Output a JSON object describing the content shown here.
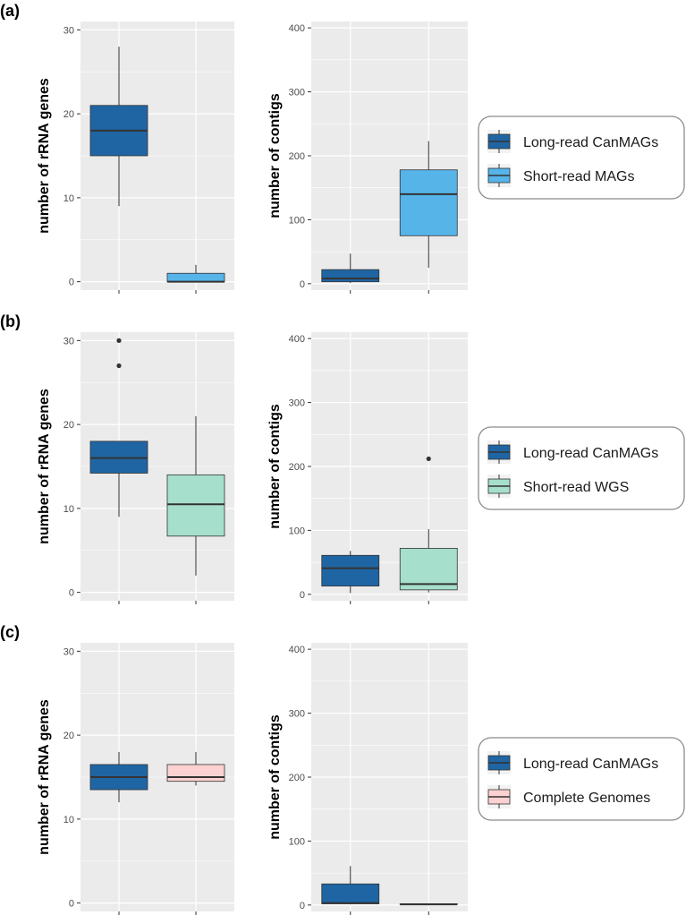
{
  "colors": {
    "long_read": "#1f65a3",
    "short_read_mags": "#56b4e9",
    "short_read_wgs": "#a6dfcc",
    "complete_genomes": "#fbd1d1",
    "panel_bg": "#ebebeb",
    "grid": "#ffffff",
    "median": "#333333"
  },
  "panels": [
    {
      "label": "(a)",
      "legend": [
        "Long-read CanMAGs",
        "Short-read MAGs"
      ]
    },
    {
      "label": "(b)",
      "legend": [
        "Long-read CanMAGs",
        "Short-read WGS"
      ]
    },
    {
      "label": "(c)",
      "legend": [
        "Long-read CanMAGs",
        "Complete Genomes"
      ]
    }
  ],
  "chart_data": [
    {
      "type": "boxplot",
      "panel": "(a)",
      "ylabel": "number of rRNA genes",
      "ylim": [
        -1,
        31
      ],
      "yticks": [
        0,
        10,
        20,
        30
      ],
      "boxes": [
        {
          "name": "Long-read CanMAGs",
          "color": "#1f65a3",
          "min": 9,
          "q1": 15,
          "median": 18,
          "q3": 21,
          "max": 28,
          "outliers": []
        },
        {
          "name": "Short-read MAGs",
          "color": "#56b4e9",
          "min": 0,
          "q1": 0,
          "median": 0,
          "q3": 1,
          "max": 2,
          "outliers": []
        }
      ]
    },
    {
      "type": "boxplot",
      "panel": "(a)",
      "ylabel": "number of contigs",
      "ylim": [
        -10,
        410
      ],
      "yticks": [
        0,
        100,
        200,
        300,
        400
      ],
      "boxes": [
        {
          "name": "Long-read CanMAGs",
          "color": "#1f65a3",
          "min": 1,
          "q1": 3,
          "median": 8,
          "q3": 22,
          "max": 47,
          "outliers": []
        },
        {
          "name": "Short-read MAGs",
          "color": "#56b4e9",
          "min": 25,
          "q1": 75,
          "median": 140,
          "q3": 178,
          "max": 223,
          "outliers": []
        }
      ]
    },
    {
      "type": "boxplot",
      "panel": "(b)",
      "ylabel": "number of rRNA genes",
      "ylim": [
        -1,
        31
      ],
      "yticks": [
        0,
        10,
        20,
        30
      ],
      "boxes": [
        {
          "name": "Long-read CanMAGs",
          "color": "#1f65a3",
          "min": 9,
          "q1": 14.2,
          "median": 16,
          "q3": 18,
          "max": 18,
          "outliers": [
            27,
            30
          ]
        },
        {
          "name": "Short-read WGS",
          "color": "#a6dfcc",
          "min": 2,
          "q1": 6.7,
          "median": 10.5,
          "q3": 14,
          "max": 21,
          "outliers": []
        }
      ]
    },
    {
      "type": "boxplot",
      "panel": "(b)",
      "ylabel": "number of contigs",
      "ylim": [
        -10,
        410
      ],
      "yticks": [
        0,
        100,
        200,
        300,
        400
      ],
      "boxes": [
        {
          "name": "Long-read CanMAGs",
          "color": "#1f65a3",
          "min": 2,
          "q1": 13,
          "median": 41,
          "q3": 61,
          "max": 68,
          "outliers": []
        },
        {
          "name": "Short-read WGS",
          "color": "#a6dfcc",
          "min": 3,
          "q1": 7,
          "median": 16,
          "q3": 72,
          "max": 102,
          "outliers": [
            212
          ]
        }
      ]
    },
    {
      "type": "boxplot",
      "panel": "(c)",
      "ylabel": "number of rRNA genes",
      "ylim": [
        -1,
        31
      ],
      "yticks": [
        0,
        10,
        20,
        30
      ],
      "boxes": [
        {
          "name": "Long-read CanMAGs",
          "color": "#1f65a3",
          "min": 12,
          "q1": 13.5,
          "median": 15,
          "q3": 16.5,
          "max": 18,
          "outliers": []
        },
        {
          "name": "Complete Genomes",
          "color": "#fbd1d1",
          "min": 14,
          "q1": 14.5,
          "median": 15,
          "q3": 16.5,
          "max": 18,
          "outliers": []
        }
      ]
    },
    {
      "type": "boxplot",
      "panel": "(c)",
      "ylabel": "number of contigs",
      "ylim": [
        -10,
        410
      ],
      "yticks": [
        0,
        100,
        200,
        300,
        400
      ],
      "boxes": [
        {
          "name": "Long-read CanMAGs",
          "color": "#1f65a3",
          "min": 1,
          "q1": 2,
          "median": 3,
          "q3": 33,
          "max": 61,
          "outliers": []
        },
        {
          "name": "Complete Genomes",
          "color": "#fbd1d1",
          "min": 1,
          "q1": 1,
          "median": 1,
          "q3": 2,
          "max": 2,
          "outliers": []
        }
      ]
    }
  ]
}
